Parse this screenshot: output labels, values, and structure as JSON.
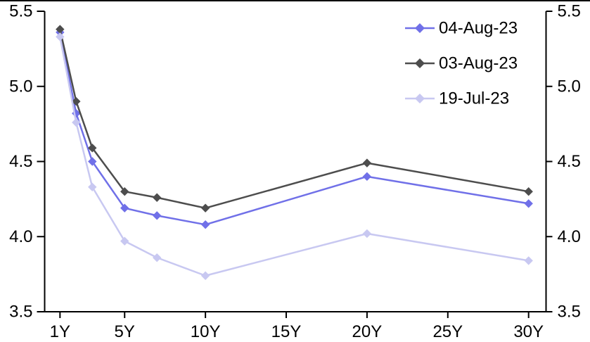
{
  "figure": {
    "background_color": "#ffffff",
    "top_border_color": "#000000"
  },
  "chart_data": {
    "type": "line",
    "title": "",
    "xlabel": "",
    "ylabel": "",
    "x_unit": "maturity-years",
    "x": [
      1,
      2,
      3,
      5,
      7,
      10,
      20,
      30
    ],
    "x_tick_years": [
      1,
      5,
      10,
      15,
      20,
      25,
      30
    ],
    "x_tick_labels": [
      "1Y",
      "5Y",
      "10Y",
      "15Y",
      "20Y",
      "25Y",
      "30Y"
    ],
    "xlim": [
      0.05,
      31.08
    ],
    "ylim": [
      3.5,
      5.5
    ],
    "y_ticks": [
      5.5,
      5.0,
      4.5,
      4.0,
      3.5
    ],
    "y_tick_labels": [
      "5.5",
      "5.0",
      "4.5",
      "4.0",
      "3.5"
    ],
    "y_axis_sides": [
      "left",
      "right"
    ],
    "grid": false,
    "marker": "diamond",
    "legend_position": "top-right",
    "axis_color": "#000000",
    "label_color": "#000000",
    "series": [
      {
        "name": "04-Aug-23",
        "color": "#7070e8",
        "values": [
          5.36,
          4.82,
          4.5,
          4.19,
          4.14,
          4.08,
          4.4,
          4.22
        ]
      },
      {
        "name": "03-Aug-23",
        "color": "#4d4d4d",
        "values": [
          5.38,
          4.9,
          4.59,
          4.3,
          4.26,
          4.19,
          4.49,
          4.3
        ]
      },
      {
        "name": "19-Jul-23",
        "color": "#c8c8f1",
        "values": [
          5.33,
          4.76,
          4.33,
          3.97,
          3.86,
          3.74,
          4.02,
          3.84
        ]
      }
    ]
  }
}
